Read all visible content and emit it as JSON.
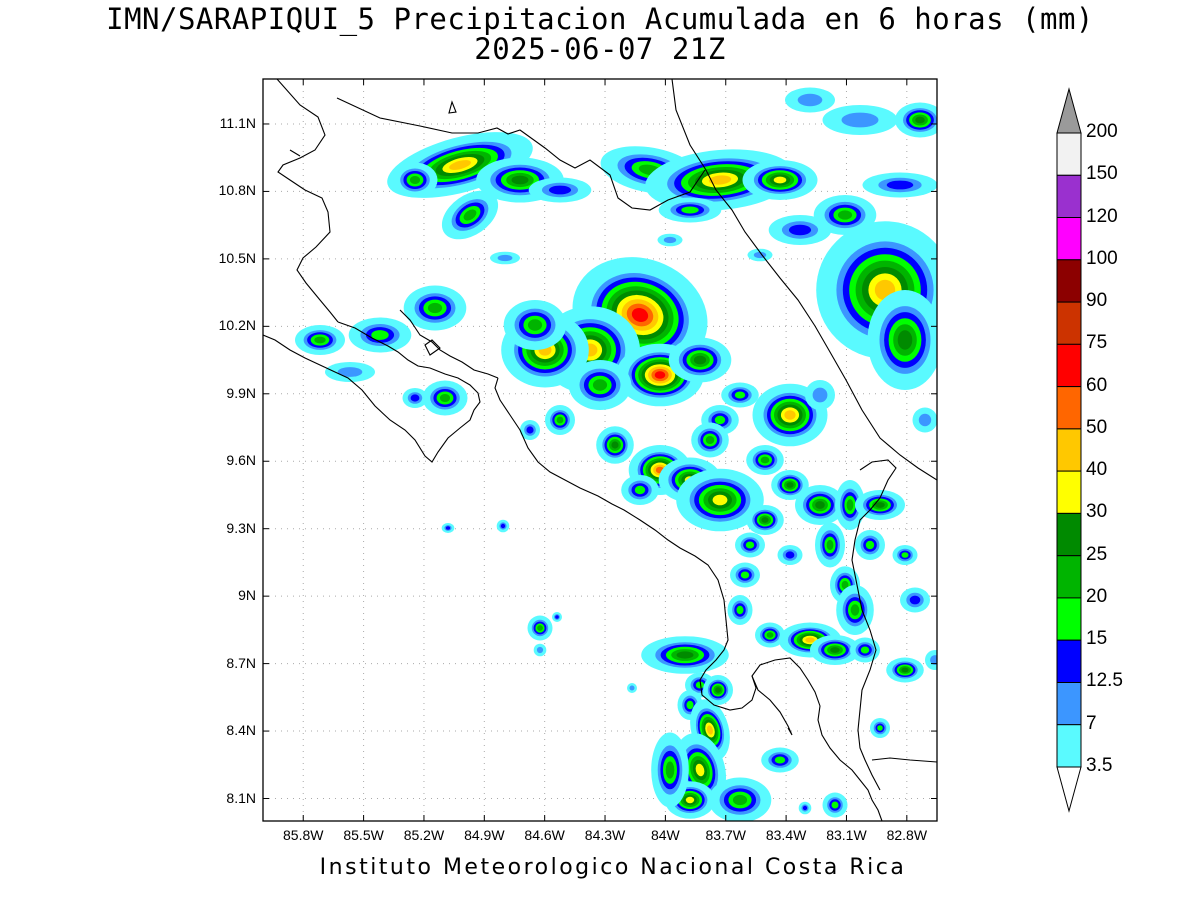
{
  "title": {
    "line1": "IMN/SARAPIQUI_5 Precipitacion Acumulada en 6 horas (mm)",
    "line2": "2025-06-07 21Z"
  },
  "footer": "Instituto Meteorologico Nacional Costa Rica",
  "map": {
    "lon_range": [
      -86.0,
      -82.65
    ],
    "lat_range": [
      8.0,
      11.3
    ],
    "x_ticks": [
      "85.8W",
      "85.5W",
      "85.2W",
      "84.9W",
      "84.6W",
      "84.3W",
      "84W",
      "83.7W",
      "83.4W",
      "83.1W",
      "82.8W"
    ],
    "x_tick_values": [
      -85.8,
      -85.5,
      -85.2,
      -84.9,
      -84.6,
      -84.3,
      -84.0,
      -83.7,
      -83.4,
      -83.1,
      -82.8
    ],
    "y_ticks": [
      "11.1N",
      "10.8N",
      "10.5N",
      "10.2N",
      "9.9N",
      "9.6N",
      "9.3N",
      "9N",
      "8.7N",
      "8.4N",
      "8.1N"
    ],
    "y_tick_values": [
      11.1,
      10.8,
      10.5,
      10.2,
      9.9,
      9.6,
      9.3,
      9.0,
      8.7,
      8.4,
      8.1
    ],
    "grid": "dotted"
  },
  "colorbar": {
    "labels": [
      "200",
      "150",
      "120",
      "100",
      "90",
      "75",
      "60",
      "50",
      "40",
      "30",
      "25",
      "20",
      "15",
      "12.5",
      "7",
      "3.5"
    ],
    "colors": [
      "#f2f2f2",
      "#9a30cf",
      "#ff00ff",
      "#8c0000",
      "#cc3300",
      "#ff0000",
      "#ff6600",
      "#ffc800",
      "#ffff00",
      "#008a00",
      "#00b400",
      "#00ff00",
      "#0000ff",
      "#3c96ff",
      "#5afaff"
    ],
    "over_color": "#9a9a9a"
  }
}
